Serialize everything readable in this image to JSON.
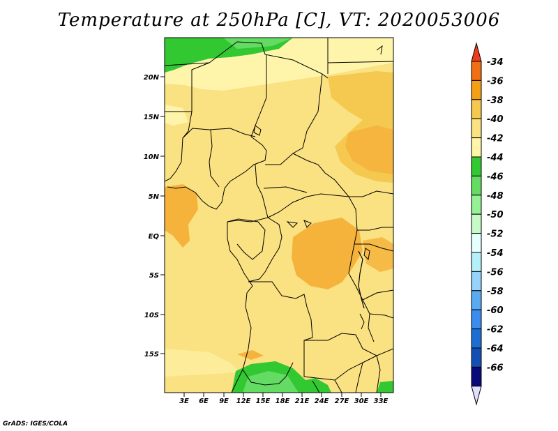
{
  "title": "Temperature at 250hPa [C], VT: 2020053006",
  "footer": "GrADS: IGES/COLA",
  "axes": {
    "lat_labels": [
      "20N",
      "15N",
      "10N",
      "5N",
      "EQ",
      "5S",
      "10S",
      "15S"
    ],
    "lon_labels": [
      "3E",
      "6E",
      "9E",
      "12E",
      "15E",
      "18E",
      "21E",
      "24E",
      "27E",
      "30E",
      "33E"
    ]
  },
  "colorbar": {
    "levels": [
      "-34",
      "-36",
      "-38",
      "-40",
      "-42",
      "-44",
      "-46",
      "-48",
      "-50",
      "-52",
      "-54",
      "-56",
      "-58",
      "-60",
      "-62",
      "-64",
      "-66"
    ],
    "colors": [
      "#f03c1e",
      "#f06e14",
      "#f5a014",
      "#f5c850",
      "#fae182",
      "#fff5aa",
      "#32c832",
      "#64dc64",
      "#96f096",
      "#c8fac8",
      "#e6ffff",
      "#b4f0fa",
      "#96d2fa",
      "#5aaaf0",
      "#3c8cf0",
      "#1e6ed2",
      "#1450b4",
      "#0a0a78",
      "#e1e1ff"
    ]
  }
}
